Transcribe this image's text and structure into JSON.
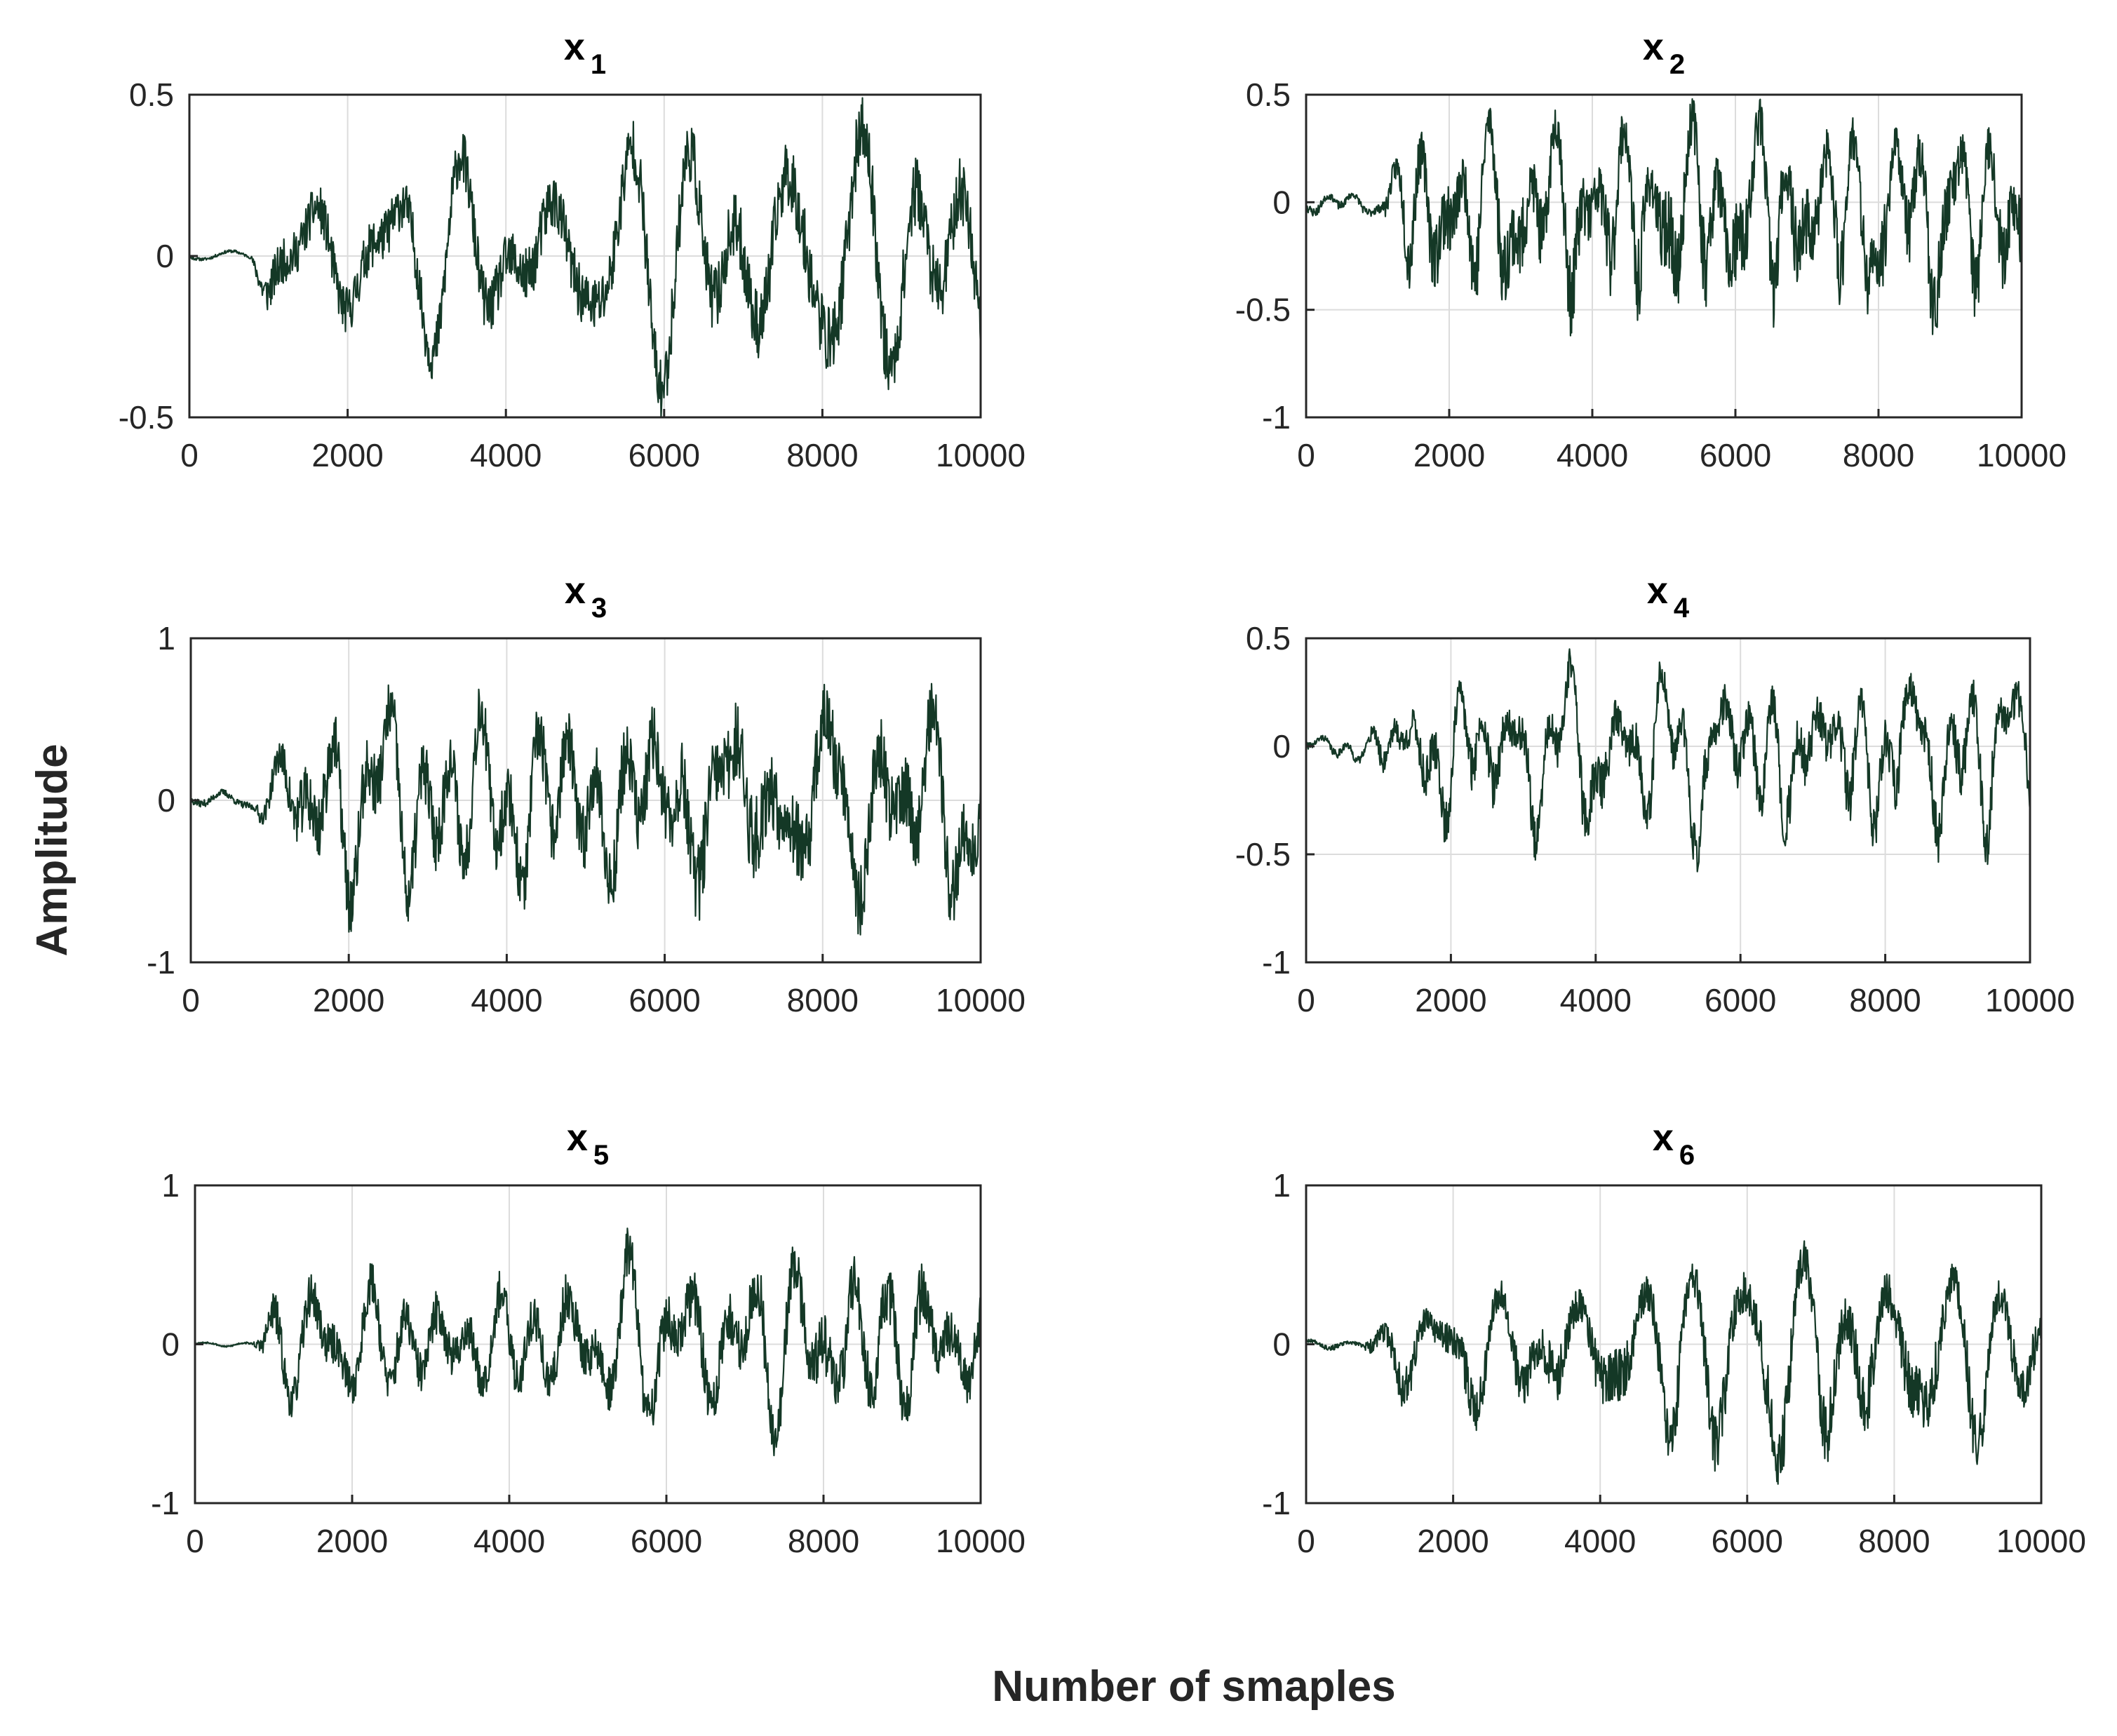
{
  "figure": {
    "xlabel": "Number of smaples",
    "ylabel": "Amplitude",
    "line_color": "#143826"
  },
  "chart_data": [
    {
      "type": "line",
      "title_base": "x",
      "title_sub": "1",
      "xlim": [
        0,
        10000
      ],
      "ylim": [
        -0.5,
        0.5
      ],
      "xticks": [
        0,
        2000,
        4000,
        6000,
        8000,
        10000
      ],
      "yticks": [
        -0.5,
        0,
        0.5
      ],
      "xtick_labels": [
        "0",
        "2000",
        "4000",
        "6000",
        "8000",
        "10000"
      ],
      "ytick_labels": [
        "-0.5",
        "0",
        "0.5"
      ],
      "grid": true,
      "series": [
        {
          "name": "x1",
          "quiet_until": 800,
          "quiet_amp": 0.02,
          "env": [
            [
              0,
              0.02
            ],
            [
              800,
              0.05
            ],
            [
              1000,
              0.3
            ],
            [
              3000,
              0.35
            ],
            [
              5000,
              0.4
            ],
            [
              7500,
              0.48
            ],
            [
              10000,
              0.45
            ]
          ],
          "peak_max": 0.49,
          "peak_min": -0.5,
          "seed": 11
        }
      ]
    },
    {
      "type": "line",
      "title_base": "x",
      "title_sub": "2",
      "xlim": [
        0,
        10000
      ],
      "ylim": [
        -1,
        0.5
      ],
      "xticks": [
        0,
        2000,
        4000,
        6000,
        8000,
        10000
      ],
      "yticks": [
        -1,
        -0.5,
        0,
        0.5
      ],
      "xtick_labels": [
        "0",
        "2000",
        "4000",
        "6000",
        "8000",
        "10000"
      ],
      "ytick_labels": [
        "-1",
        "-0.5",
        "0",
        "0.5"
      ],
      "grid": true,
      "series": [
        {
          "name": "x2",
          "quiet_until": 1100,
          "quiet_amp": 0.05,
          "env": [
            [
              0,
              0.05
            ],
            [
              1100,
              0.12
            ],
            [
              1500,
              0.4
            ],
            [
              5000,
              0.45
            ],
            [
              10000,
              0.4
            ]
          ],
          "peak_max": 0.48,
          "peak_min": -0.62,
          "seed": 23
        }
      ]
    },
    {
      "type": "line",
      "title_base": "x",
      "title_sub": "3",
      "xlim": [
        0,
        10000
      ],
      "ylim": [
        -1,
        1
      ],
      "xticks": [
        0,
        2000,
        4000,
        6000,
        8000,
        10000
      ],
      "yticks": [
        -1,
        0,
        1
      ],
      "xtick_labels": [
        "0",
        "2000",
        "4000",
        "6000",
        "8000",
        "10000"
      ],
      "ytick_labels": [
        "-1",
        "0",
        "1"
      ],
      "grid": true,
      "series": [
        {
          "name": "x3",
          "quiet_until": 850,
          "quiet_amp": 0.06,
          "env": [
            [
              0,
              0.05
            ],
            [
              850,
              0.1
            ],
            [
              1500,
              0.6
            ],
            [
              4000,
              0.55
            ],
            [
              7000,
              0.75
            ],
            [
              10000,
              0.6
            ]
          ],
          "peak_max": 0.72,
          "peak_min": -0.83,
          "seed": 37
        }
      ]
    },
    {
      "type": "line",
      "title_base": "x",
      "title_sub": "4",
      "xlim": [
        0,
        10000
      ],
      "ylim": [
        -1,
        0.5
      ],
      "xticks": [
        0,
        2000,
        4000,
        6000,
        8000,
        10000
      ],
      "yticks": [
        -1,
        -0.5,
        0,
        0.5
      ],
      "xtick_labels": [
        "0",
        "2000",
        "4000",
        "6000",
        "8000",
        "10000"
      ],
      "ytick_labels": [
        "-1",
        "-0.5",
        "0",
        "0.5"
      ],
      "grid": true,
      "series": [
        {
          "name": "x4",
          "quiet_until": 900,
          "quiet_amp": 0.07,
          "env": [
            [
              0,
              0.07
            ],
            [
              900,
              0.15
            ],
            [
              1500,
              0.38
            ],
            [
              5000,
              0.42
            ],
            [
              10000,
              0.45
            ]
          ],
          "peak_max": 0.45,
          "peak_min": -0.58,
          "seed": 41
        }
      ]
    },
    {
      "type": "line",
      "title_base": "x",
      "title_sub": "5",
      "xlim": [
        0,
        10000
      ],
      "ylim": [
        -1,
        1
      ],
      "xticks": [
        0,
        2000,
        4000,
        6000,
        8000,
        10000
      ],
      "yticks": [
        -1,
        0,
        1
      ],
      "xtick_labels": [
        "0",
        "2000",
        "4000",
        "6000",
        "8000",
        "10000"
      ],
      "ytick_labels": [
        "-1",
        "0",
        "1"
      ],
      "grid": true,
      "series": [
        {
          "name": "x5",
          "quiet_until": 750,
          "quiet_amp": 0.02,
          "env": [
            [
              0,
              0.02
            ],
            [
              750,
              0.06
            ],
            [
              1000,
              0.45
            ],
            [
              4000,
              0.5
            ],
            [
              8500,
              0.7
            ],
            [
              10000,
              0.6
            ]
          ],
          "peak_max": 0.73,
          "peak_min": -0.7,
          "seed": 53
        }
      ]
    },
    {
      "type": "line",
      "title_base": "x",
      "title_sub": "6",
      "xlim": [
        0,
        10000
      ],
      "ylim": [
        -1,
        1
      ],
      "xticks": [
        0,
        2000,
        4000,
        6000,
        8000,
        10000
      ],
      "yticks": [
        -1,
        0,
        1
      ],
      "xtick_labels": [
        "0",
        "2000",
        "4000",
        "6000",
        "8000",
        "10000"
      ],
      "ytick_labels": [
        "-1",
        "0",
        "1"
      ],
      "grid": true,
      "series": [
        {
          "name": "x6",
          "quiet_until": 800,
          "quiet_amp": 0.05,
          "env": [
            [
              0,
              0.05
            ],
            [
              800,
              0.1
            ],
            [
              1200,
              0.4
            ],
            [
              4000,
              0.5
            ],
            [
              7500,
              0.65
            ],
            [
              10000,
              0.45
            ]
          ],
          "peak_max": 0.65,
          "peak_min": -0.88,
          "seed": 67
        }
      ]
    }
  ]
}
